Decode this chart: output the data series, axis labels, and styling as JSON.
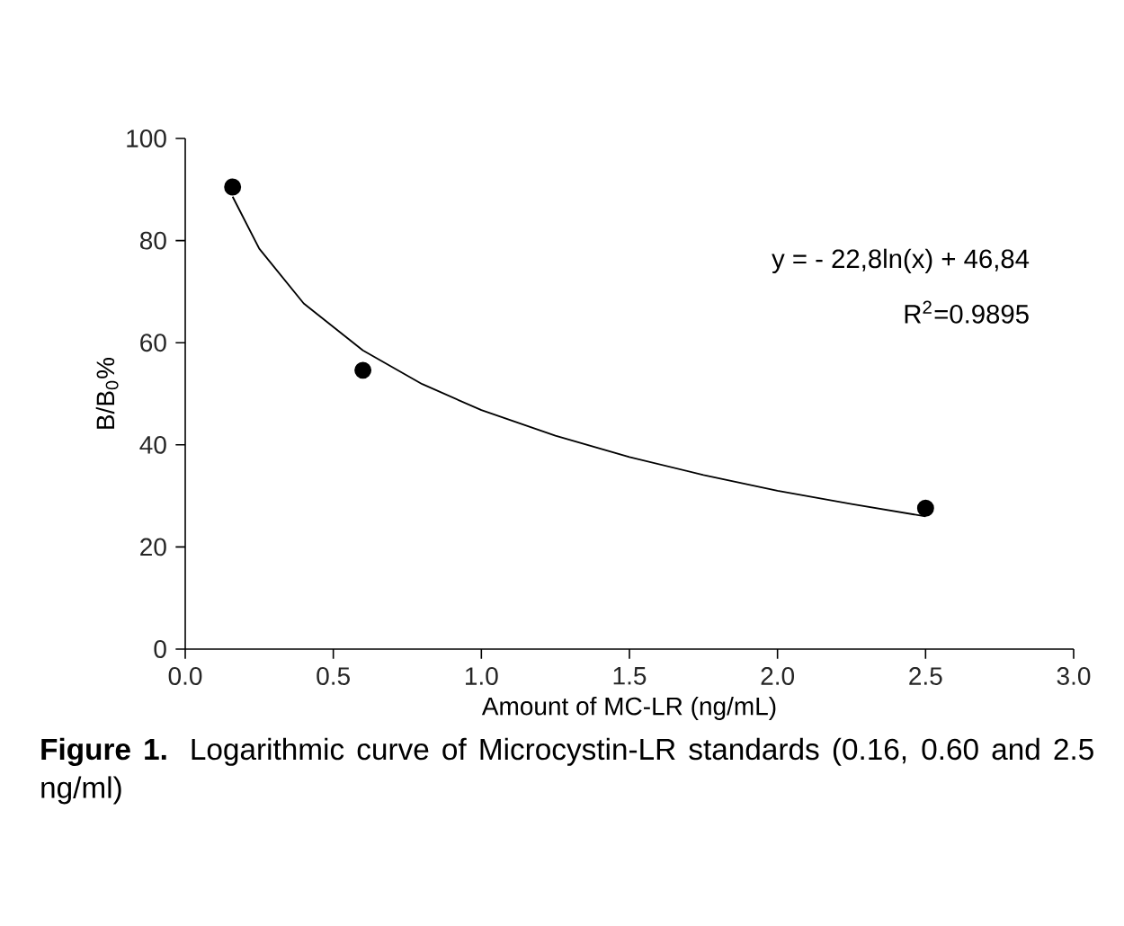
{
  "chart_data": {
    "type": "scatter",
    "xlabel": "Amount of MC-LR (ng/mL)",
    "ylabel": "B/B$_{0}$%",
    "xlim": [
      0,
      3
    ],
    "ylim": [
      0,
      100
    ],
    "xticks": [
      {
        "value": 0,
        "label": "0.0"
      },
      {
        "value": 0.5,
        "label": "0.5"
      },
      {
        "value": 1,
        "label": "1.0"
      },
      {
        "value": 1.5,
        "label": "1.5"
      },
      {
        "value": 2,
        "label": "2.0"
      },
      {
        "value": 2.5,
        "label": "2.5"
      },
      {
        "value": 3,
        "label": "3.0"
      }
    ],
    "yticks": [
      0,
      20,
      40,
      60,
      80,
      100
    ],
    "series": [
      {
        "color": "#000000",
        "marker": "circle",
        "x": [
          0.16,
          0.6,
          2.5
        ],
        "values": [
          90.5,
          54.6,
          27.6
        ]
      },
      {
        "type": "line",
        "color": "#000000",
        "x": [
          0.16,
          0.25,
          0.4,
          0.6,
          0.8,
          1.0,
          1.25,
          1.5,
          1.75,
          2.0,
          2.25,
          2.5
        ],
        "values": [
          88.6,
          78.4,
          67.7,
          58.5,
          51.9,
          46.8,
          41.8,
          37.6,
          34.1,
          31.0,
          28.4,
          26.0
        ]
      }
    ],
    "annotations": [
      "y = - 22,8ln(x) + 46,84",
      "R$^{2}$=0.9895",
      "**Figure 1.** Logarithmic curve of Microcystin-LR standards (0.16, 0.60 and 2.5 ng/ml)"
    ]
  }
}
